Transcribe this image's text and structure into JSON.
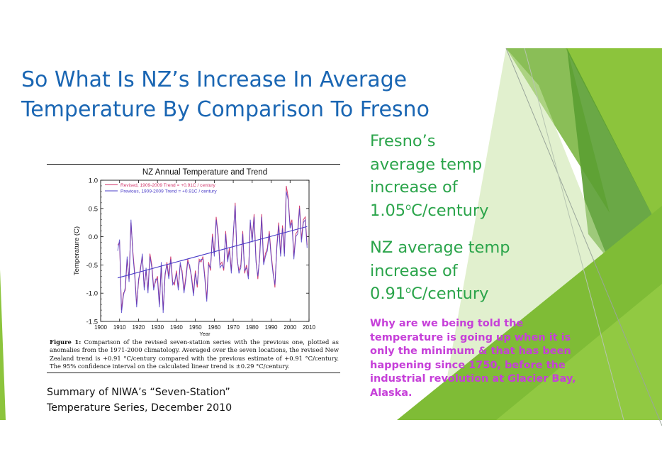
{
  "slide": {
    "title_line1": "So What Is NZ’s Increase In Average",
    "title_line2": "Temperature By Comparison To Fresno",
    "fresno_text_1": "Fresno’s",
    "fresno_text_2": "average temp",
    "fresno_text_3": "increase of",
    "fresno_value": "1.05",
    "fresno_unit_sup": "o",
    "fresno_unit": "C/century",
    "nz_text_1": "NZ average temp",
    "nz_text_2": "increase of",
    "nz_value": "0.91",
    "nz_unit_sup": "o",
    "nz_unit": "C/century",
    "question": "Why are we being told the temperature is going up when it is only the minimum & that has been happening since 1750, before the industrial revolution at Glacier Bay, Alaska.",
    "summary_line1": "Summary of NIWA’s “Seven-Station”",
    "summary_line2": "Temperature Series, December 2010",
    "caption_label": "Figure 1:",
    "caption_text": " Comparison of the revised seven-station series with the previous one, plotted as anomalies from the 1971-2000 climatology. Averaged over the seven locations, the revised New Zealand trend is +0.91 °C/century compared with the previous estimate of +0.91 °C/century. The 95% confidence interval on the calculated linear trend is ±0.29 °C/century.",
    "colors": {
      "title": "#1a66b3",
      "green_text": "#2aa44a",
      "question": "#c63fd9",
      "revised_series": "#d2386c",
      "previous_series": "#4a3cc8",
      "accent_green_1": "#8cc43c",
      "accent_green_2": "#5a9e32"
    }
  },
  "chart_data": {
    "type": "line",
    "title": "NZ Annual Temperature and Trend",
    "xlabel": "Year",
    "ylabel": "Temperature (C)",
    "xlim": [
      1900,
      2010
    ],
    "ylim": [
      -1.5,
      1.0
    ],
    "x_ticks": [
      1900,
      1910,
      1920,
      1930,
      1940,
      1950,
      1960,
      1970,
      1980,
      1990,
      2000,
      2010
    ],
    "y_ticks": [
      -1.5,
      -1.0,
      -0.5,
      0.0,
      0.5,
      1.0
    ],
    "y_tick_labels": [
      "-1.5",
      "-1.0",
      "-0.5",
      "0.0",
      "0.5",
      "1.0"
    ],
    "legend_position": "top-left",
    "x": [
      1909,
      1910,
      1911,
      1912,
      1913,
      1914,
      1915,
      1916,
      1917,
      1918,
      1919,
      1920,
      1921,
      1922,
      1923,
      1924,
      1925,
      1926,
      1927,
      1928,
      1929,
      1930,
      1931,
      1932,
      1933,
      1934,
      1935,
      1936,
      1937,
      1938,
      1939,
      1940,
      1941,
      1942,
      1943,
      1944,
      1945,
      1946,
      1947,
      1948,
      1949,
      1950,
      1951,
      1952,
      1953,
      1954,
      1955,
      1956,
      1957,
      1958,
      1959,
      1960,
      1961,
      1962,
      1963,
      1964,
      1965,
      1966,
      1967,
      1968,
      1969,
      1970,
      1971,
      1972,
      1973,
      1974,
      1975,
      1976,
      1977,
      1978,
      1979,
      1980,
      1981,
      1982,
      1983,
      1984,
      1985,
      1986,
      1987,
      1988,
      1989,
      1990,
      1991,
      1992,
      1993,
      1994,
      1995,
      1996,
      1997,
      1998,
      1999,
      2000,
      2001,
      2002,
      2003,
      2004,
      2005,
      2006,
      2007,
      2008,
      2009
    ],
    "series": [
      {
        "name": "Revised, 1909-2009 Trend = +0.91C / century",
        "values": [
          -0.15,
          -0.1,
          -1.3,
          -1.0,
          -0.95,
          -0.4,
          -0.75,
          0.25,
          -0.25,
          -0.65,
          -1.2,
          -0.8,
          -0.55,
          -0.35,
          -0.9,
          -0.6,
          -0.95,
          -0.3,
          -0.5,
          -0.9,
          -0.8,
          -0.7,
          -1.2,
          -0.5,
          -1.3,
          -0.7,
          -0.45,
          -0.7,
          -0.35,
          -0.8,
          -0.85,
          -0.6,
          -0.9,
          -0.5,
          -0.6,
          -0.95,
          -0.7,
          -0.4,
          -0.55,
          -0.7,
          -1.0,
          -0.6,
          -0.9,
          -0.4,
          -0.45,
          -0.35,
          -0.7,
          -1.1,
          -0.45,
          -0.6,
          0.05,
          -0.3,
          0.35,
          0.05,
          -0.5,
          -0.45,
          -0.6,
          0.1,
          -0.4,
          -0.2,
          -0.6,
          0.0,
          0.6,
          -0.4,
          -0.6,
          -0.5,
          0.1,
          -0.65,
          -0.5,
          -0.7,
          0.25,
          -0.05,
          0.4,
          -0.4,
          -0.75,
          -0.3,
          0.4,
          -0.45,
          -0.3,
          -0.2,
          0.1,
          -0.3,
          -0.6,
          -0.9,
          -0.15,
          0.25,
          -0.3,
          0.2,
          -0.3,
          0.9,
          0.7,
          0.2,
          0.3,
          -0.35,
          0.05,
          0.1,
          0.55,
          -0.05,
          0.3,
          0.35,
          -0.15
        ]
      },
      {
        "name": "Previous, 1909-2009 Trend = +0.91C / century",
        "values": [
          -0.25,
          -0.05,
          -1.35,
          -1.05,
          -0.9,
          -0.35,
          -0.8,
          0.3,
          -0.3,
          -0.7,
          -1.25,
          -0.75,
          -0.6,
          -0.3,
          -0.95,
          -0.55,
          -1.0,
          -0.35,
          -0.55,
          -0.95,
          -0.75,
          -0.75,
          -1.25,
          -0.45,
          -1.35,
          -0.65,
          -0.5,
          -0.75,
          -0.4,
          -0.85,
          -0.8,
          -0.65,
          -0.95,
          -0.45,
          -0.65,
          -1.0,
          -0.75,
          -0.45,
          -0.5,
          -0.75,
          -1.05,
          -0.65,
          -0.85,
          -0.45,
          -0.4,
          -0.4,
          -0.75,
          -1.15,
          -0.5,
          -0.55,
          0.0,
          -0.35,
          0.3,
          0.0,
          -0.55,
          -0.5,
          -0.55,
          0.05,
          -0.45,
          -0.25,
          -0.65,
          0.05,
          0.55,
          -0.35,
          -0.65,
          -0.55,
          0.05,
          -0.6,
          -0.55,
          -0.75,
          0.3,
          -0.1,
          0.35,
          -0.45,
          -0.7,
          -0.35,
          0.35,
          -0.5,
          -0.35,
          -0.25,
          0.05,
          -0.35,
          -0.65,
          -0.85,
          -0.2,
          0.2,
          -0.35,
          0.15,
          -0.35,
          0.8,
          0.65,
          0.15,
          0.25,
          -0.4,
          0.0,
          0.05,
          0.5,
          -0.1,
          0.25,
          0.3,
          -0.2
        ]
      }
    ],
    "trend": {
      "name": "Linear trend +0.91C / century",
      "x": [
        1909,
        2009
      ],
      "y": [
        -0.73,
        0.18
      ]
    }
  }
}
